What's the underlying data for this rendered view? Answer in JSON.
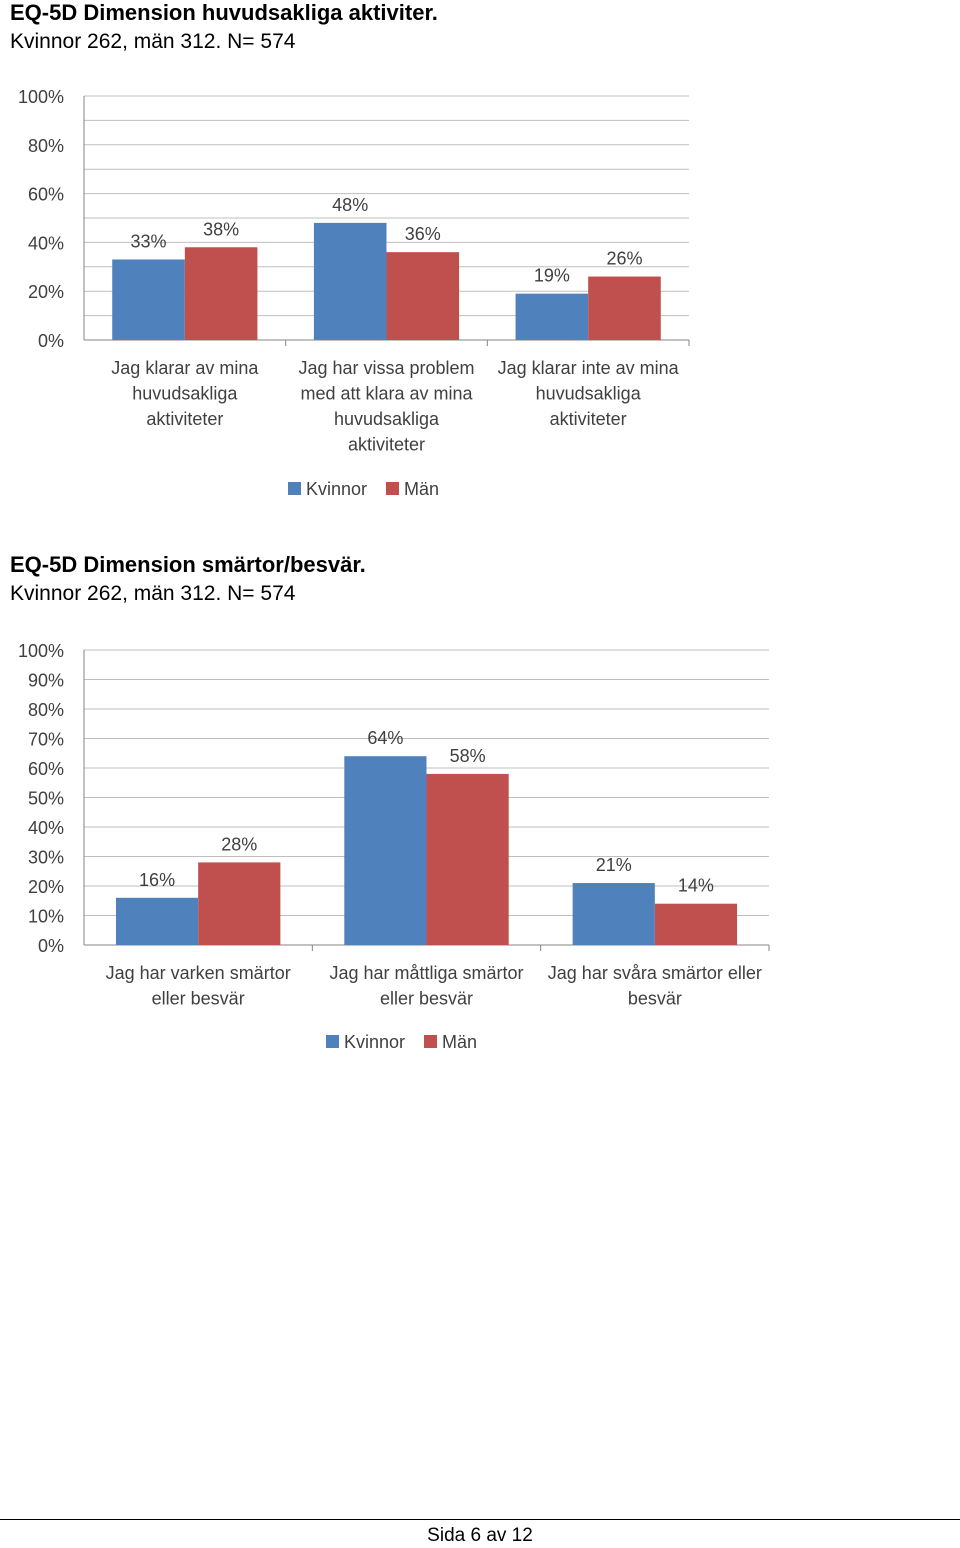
{
  "colors": {
    "kvinnor": "#4F81BD",
    "man": "#C0504D",
    "grid": "#BFBFBF",
    "axis": "#868686"
  },
  "chart_data": [
    {
      "type": "bar",
      "title": "EQ-5D Dimension huvudsakliga aktiviter.",
      "subtitle": "Kvinnor 262, män 312. N= 574",
      "categories": [
        [
          "Jag klarar av mina",
          "huvudsakliga",
          "aktiviteter"
        ],
        [
          "Jag har vissa problem",
          "med att klara av mina",
          "huvudsakliga",
          "aktiviteter"
        ],
        [
          "Jag klarar inte av mina",
          "huvudsakliga",
          "aktiviteter"
        ]
      ],
      "series": [
        {
          "name": "Kvinnor",
          "values": [
            33,
            48,
            19
          ],
          "labels": [
            "33%",
            "48%",
            "19%"
          ]
        },
        {
          "name": "Män",
          "values": [
            38,
            36,
            26
          ],
          "labels": [
            "38%",
            "36%",
            "26%"
          ]
        }
      ],
      "ylim": [
        0,
        100
      ],
      "yticks": [
        "0%",
        "20%",
        "40%",
        "60%",
        "80%",
        "100%"
      ],
      "ytick_values": [
        0,
        20,
        40,
        60,
        80,
        100
      ],
      "grid": true,
      "legend": "bottom"
    },
    {
      "type": "bar",
      "title": "EQ-5D Dimension smärtor/besvär.",
      "subtitle": "Kvinnor 262, män 312. N= 574",
      "categories": [
        [
          "Jag har varken smärtor",
          "eller besvär"
        ],
        [
          "Jag har måttliga smärtor",
          "eller besvär"
        ],
        [
          "Jag har svåra smärtor eller",
          "besvär"
        ]
      ],
      "series": [
        {
          "name": "Kvinnor",
          "values": [
            16,
            64,
            21
          ],
          "labels": [
            "16%",
            "64%",
            "21%"
          ]
        },
        {
          "name": "Män",
          "values": [
            28,
            58,
            14
          ],
          "labels": [
            "28%",
            "58%",
            "14%"
          ]
        }
      ],
      "ylim": [
        0,
        100
      ],
      "yticks": [
        "0%",
        "10%",
        "20%",
        "30%",
        "40%",
        "50%",
        "60%",
        "70%",
        "80%",
        "90%",
        "100%"
      ],
      "ytick_values": [
        0,
        10,
        20,
        30,
        40,
        50,
        60,
        70,
        80,
        90,
        100
      ],
      "grid": true,
      "legend": "bottom"
    }
  ],
  "footer": {
    "page_label": "Sida 6 av 12"
  }
}
